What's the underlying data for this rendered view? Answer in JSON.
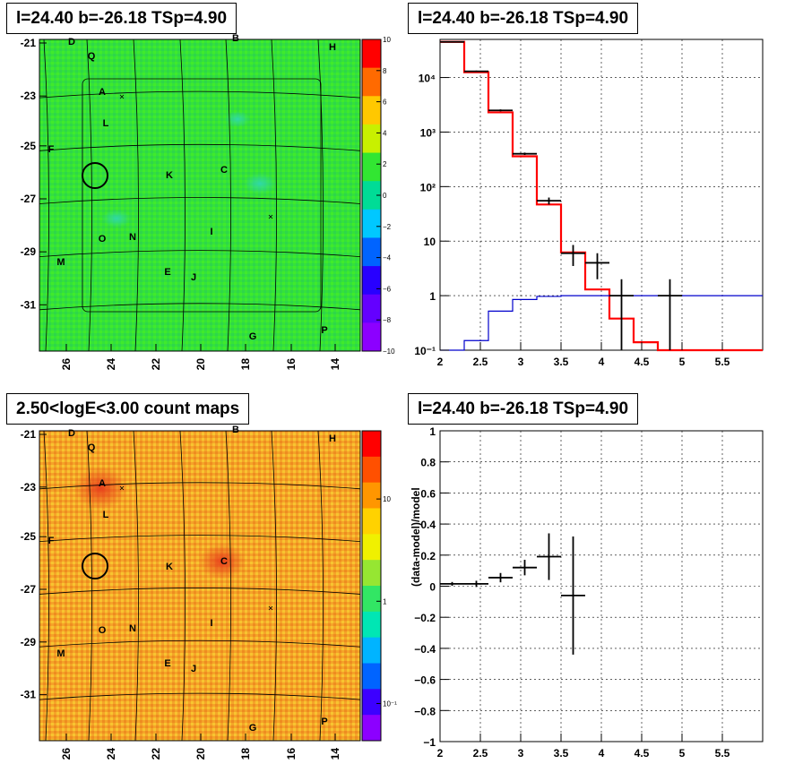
{
  "panels": {
    "tl_title": "l=24.40 b=-26.18 TSp=4.90",
    "tr_title": "l=24.40 b=-26.18 TSp=4.90",
    "bl_title": "2.50<logE<3.00 count maps",
    "br_title": "l=24.40 b=-26.18 TSp=4.90"
  },
  "map_labels": [
    "D",
    "Q",
    "B",
    "H",
    "A",
    "L",
    "F",
    "C",
    "K",
    "O",
    "N",
    "I",
    "M",
    "E",
    "J",
    "G",
    "P"
  ],
  "map_axes": {
    "x_ticks": [
      "26",
      "24",
      "22",
      "20",
      "18",
      "16",
      "14"
    ],
    "y_ticks": [
      "-21",
      "-23",
      "-25",
      "-27",
      "-29",
      "-31"
    ]
  },
  "colorbar_residual": {
    "ticks": [
      "10",
      "8",
      "6",
      "4",
      "2",
      "0",
      "−2",
      "−4",
      "−6",
      "−8",
      "−10"
    ],
    "colors": [
      "#ff0000",
      "#ff6a00",
      "#ffc800",
      "#c8f000",
      "#32e632",
      "#00dc96",
      "#00c8ff",
      "#0064ff",
      "#2800ff",
      "#6400ff",
      "#8c00ff"
    ]
  },
  "colorbar_counts": {
    "ticks": [
      "10",
      "1",
      "10⁻¹"
    ],
    "colors": [
      "#ff0000",
      "#ff5000",
      "#ff9600",
      "#ffd200",
      "#f0f000",
      "#96e632",
      "#32e664",
      "#00e6b4",
      "#00b4ff",
      "#0064ff",
      "#3c00ff",
      "#8c00ff"
    ]
  },
  "chart_data": [
    {
      "type": "line",
      "title": "l=24.40 b=-26.18 TSp=4.90",
      "yscale": "log",
      "xlim": [
        2,
        6
      ],
      "ylim": [
        0.1,
        50000
      ],
      "x_ticks": [
        "2",
        "2.5",
        "3",
        "3.5",
        "4",
        "4.5",
        "5",
        "5.5"
      ],
      "y_ticks": [
        "10⁻¹",
        "1",
        "10",
        "10²",
        "10³",
        "10⁴"
      ],
      "grid": true,
      "series": [
        {
          "color": "#ff0000",
          "bins": [
            2.0,
            2.3,
            2.6,
            2.9,
            3.2,
            3.5,
            3.8,
            4.1,
            4.4,
            4.7,
            5.0,
            6.0
          ],
          "values": [
            45000,
            12500,
            2300,
            360,
            47,
            6.2,
            1.3,
            0.38,
            0.14,
            0.1,
            0.1
          ]
        },
        {
          "color": "#0000cc",
          "bins": [
            2.0,
            2.3,
            2.6,
            2.9,
            3.2,
            3.5,
            4.7,
            6.0
          ],
          "values": [
            0.04,
            0.15,
            0.52,
            0.85,
            0.97,
            1.0,
            1.0
          ]
        },
        {
          "color": "#000000",
          "points": [
            {
              "x": 2.15,
              "y": 45000,
              "xerr": 0.15,
              "ylo": 44000,
              "yhi": 46000
            },
            {
              "x": 2.45,
              "y": 13000,
              "xerr": 0.15,
              "ylo": 12600,
              "yhi": 13400
            },
            {
              "x": 2.75,
              "y": 2500,
              "xerr": 0.15,
              "ylo": 2400,
              "yhi": 2600
            },
            {
              "x": 3.05,
              "y": 400,
              "xerr": 0.15,
              "ylo": 380,
              "yhi": 420
            },
            {
              "x": 3.35,
              "y": 55,
              "xerr": 0.15,
              "ylo": 47,
              "yhi": 63
            },
            {
              "x": 3.65,
              "y": 6,
              "xerr": 0.15,
              "ylo": 3.5,
              "yhi": 8.5
            },
            {
              "x": 3.95,
              "y": 4,
              "xerr": 0.15,
              "ylo": 2,
              "yhi": 6
            },
            {
              "x": 4.25,
              "y": 1,
              "xerr": 0.15,
              "ylo": 0.1,
              "yhi": 2
            },
            {
              "x": 4.85,
              "y": 1,
              "xerr": 0.15,
              "ylo": 0.1,
              "yhi": 2
            }
          ]
        }
      ]
    },
    {
      "type": "scatter",
      "title": "l=24.40 b=-26.18 TSp=4.90",
      "ylabel": "(data-model)/model",
      "xlim": [
        2,
        6
      ],
      "ylim": [
        -1,
        1
      ],
      "x_ticks": [
        "2",
        "2.5",
        "3",
        "3.5",
        "4",
        "4.5",
        "5",
        "5.5"
      ],
      "y_ticks": [
        "1",
        "0.8",
        "0.6",
        "0.4",
        "0.2",
        "0",
        "−0.2",
        "−0.4",
        "−0.6",
        "−0.8",
        "−1"
      ],
      "grid": true,
      "points": [
        {
          "x": 2.15,
          "y": 0.015,
          "xerr": 0.15,
          "yerr": 0.012
        },
        {
          "x": 2.45,
          "y": 0.015,
          "xerr": 0.15,
          "yerr": 0.02
        },
        {
          "x": 2.75,
          "y": 0.055,
          "xerr": 0.15,
          "yerr": 0.03
        },
        {
          "x": 3.05,
          "y": 0.12,
          "xerr": 0.15,
          "yerr": 0.05
        },
        {
          "x": 3.35,
          "y": 0.19,
          "xerr": 0.15,
          "yerr": 0.15
        },
        {
          "x": 3.65,
          "y": -0.06,
          "xerr": 0.15,
          "yerr": 0.38
        }
      ]
    }
  ]
}
